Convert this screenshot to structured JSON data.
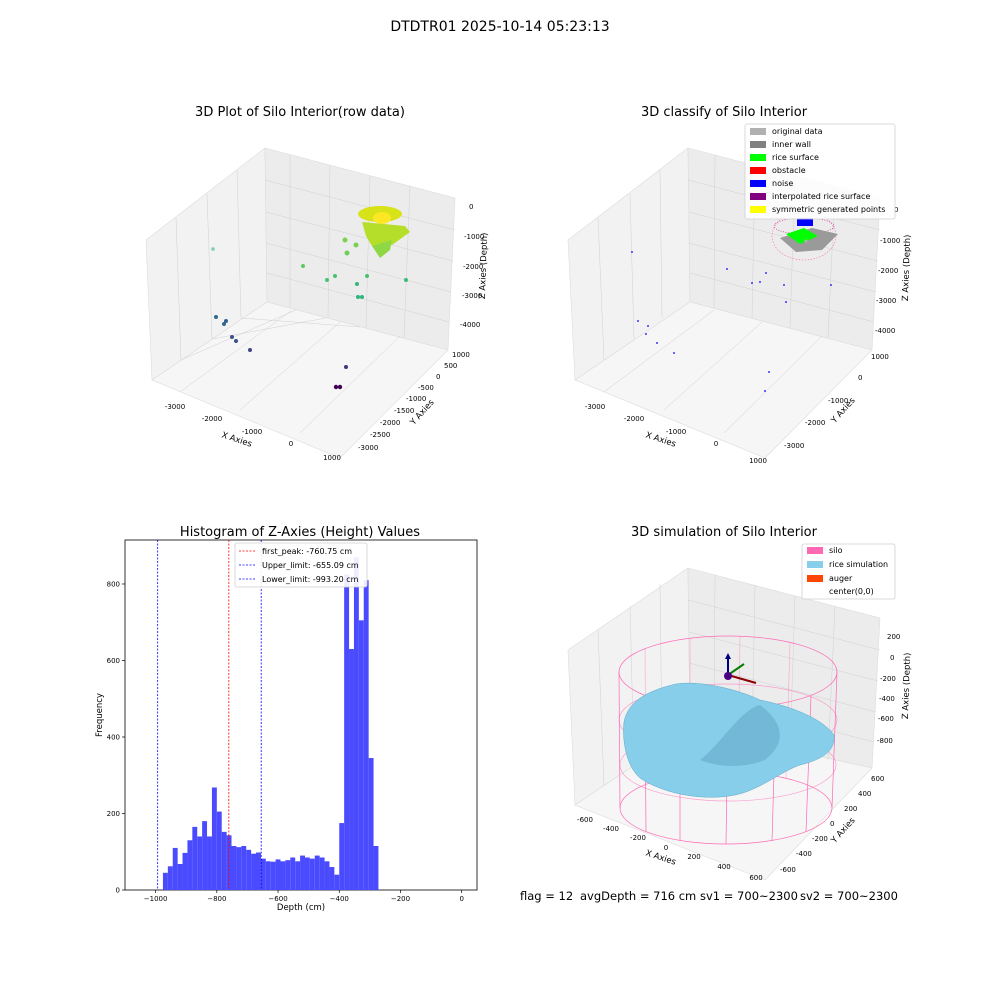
{
  "figure": {
    "suptitle": "DTDTR01 2025-10-14 05:23:13",
    "footer": {
      "flag": "flag = 12",
      "avg": "avgDepth = 716 cm",
      "sv1": "sv1 = 700~2300",
      "sv2": "sv2 = 700~2300"
    }
  },
  "colors": {
    "original_data": "#b0b0b0",
    "inner_wall": "#808080",
    "rice_surface": "#00ff00",
    "obstacle": "#ff0000",
    "noise": "#0000ff",
    "interpolated": "#800080",
    "symmetric": "#ffff00",
    "silo": "#ff69b4",
    "rice_sim": "#87ceeb",
    "auger": "#ff4500",
    "hist_bar": "#4a4aff"
  },
  "chart_data": [
    {
      "type": "scatter",
      "title": "3D Plot of Silo Interior(row data)",
      "xlabel": "X Axies",
      "ylabel": "Y Axies",
      "zlabel": "Z Axies (Depth)",
      "x_ticks": [
        "-3000",
        "-2000",
        "-1000",
        "0",
        "1000"
      ],
      "y_ticks": [
        "1000",
        "500",
        "0",
        "-500",
        "-1000",
        "-1500",
        "-2000",
        "-2500",
        "-3000"
      ],
      "z_ticks": [
        "0",
        "-1000",
        "-2000",
        "-3000",
        "-4000"
      ],
      "xlim": [
        -3500,
        1000
      ],
      "ylim": [
        -3200,
        1000
      ],
      "zlim": [
        -4500,
        0
      ],
      "colormap": "viridis by depth",
      "points_sample": [
        {
          "x": 150,
          "y": 400,
          "z": -300
        },
        {
          "x": 0,
          "y": 300,
          "z": -600
        },
        {
          "x": -300,
          "y": 500,
          "z": -1300
        },
        {
          "x": -1200,
          "y": 0,
          "z": -1800
        },
        {
          "x": -2500,
          "y": -1500,
          "z": -2800
        },
        {
          "x": -3100,
          "y": -2500,
          "z": -3900
        },
        {
          "x": 600,
          "y": -2800,
          "z": -4300
        }
      ]
    },
    {
      "type": "scatter",
      "title": "3D classify of Silo Interior",
      "xlabel": "X Axies",
      "ylabel": "Y Axies",
      "zlabel": "Z Axies (Depth)",
      "x_ticks": [
        "-3000",
        "-2000",
        "-1000",
        "0",
        "1000"
      ],
      "y_ticks": [
        "1000",
        "0",
        "-1000",
        "-2000",
        "-3000"
      ],
      "z_ticks": [
        "0",
        "-1000",
        "-2000",
        "-3000",
        "-4000"
      ],
      "legend": [
        "original data",
        "inner wall",
        "rice surface",
        "obstacle",
        "noise",
        "interpolated rice surface",
        "symmetric generated points"
      ],
      "legend_position": "top-right"
    },
    {
      "type": "bar",
      "title": "Histogram of Z-Axies (Height) Values",
      "xlabel": "Depth (cm)",
      "ylabel": "Frequency",
      "xlim": [
        -1100,
        50
      ],
      "ylim": [
        0,
        915
      ],
      "x_ticks": [
        -1000,
        -800,
        -600,
        -400,
        -200,
        0
      ],
      "y_ticks": [
        0,
        200,
        400,
        600,
        800
      ],
      "bin_width": 16,
      "bin_start": -976,
      "values": [
        45,
        62,
        110,
        68,
        97,
        130,
        165,
        140,
        180,
        140,
        268,
        205,
        152,
        143,
        115,
        112,
        115,
        105,
        95,
        98,
        82,
        75,
        74,
        80,
        75,
        78,
        85,
        75,
        90,
        85,
        82,
        90,
        85,
        75,
        60,
        40,
        175,
        825,
        630,
        870,
        705,
        810,
        345,
        115
      ],
      "vlines": [
        {
          "label": "first_peak: -760.75 cm",
          "x": -760.75,
          "color": "#ff0000"
        },
        {
          "label": "Upper_limit: -655.09 cm",
          "x": -655.09,
          "color": "#0000ff"
        },
        {
          "label": "Lower_limit: -993.20 cm",
          "x": -993.2,
          "color": "#0000ff"
        }
      ],
      "legend_position": "top-center"
    },
    {
      "type": "area",
      "title": "3D simulation of Silo Interior",
      "xlabel": "X Axies",
      "ylabel": "Y Axies",
      "zlabel": "Z Axies (Depth)",
      "x_ticks": [
        "-600",
        "-400",
        "-200",
        "0",
        "200",
        "400",
        "600"
      ],
      "y_ticks": [
        "600",
        "400",
        "200",
        "0",
        "-200",
        "-400",
        "-600"
      ],
      "z_ticks": [
        "200",
        "0",
        "-200",
        "-400",
        "-600",
        "-800"
      ],
      "legend": [
        "silo",
        "rice simulation",
        "auger",
        "center(0,0)"
      ],
      "legend_position": "top-right"
    }
  ]
}
